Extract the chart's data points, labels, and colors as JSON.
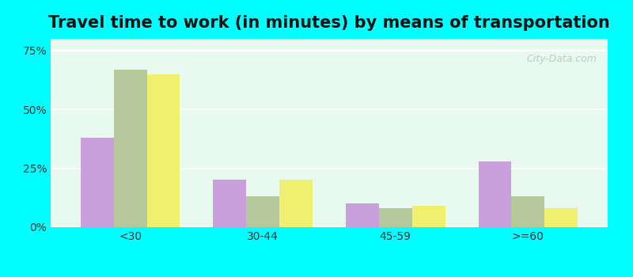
{
  "title": "Travel time to work (in minutes) by means of transportation",
  "categories": [
    "<30",
    "30-44",
    "45-59",
    ">=60"
  ],
  "series": {
    "Public transportation - Alabama": [
      38,
      20,
      10,
      28
    ],
    "Other means - Snead": [
      67,
      13,
      8,
      13
    ],
    "Other means - Alabama": [
      65,
      20,
      9,
      8
    ]
  },
  "colors": {
    "Public transportation - Alabama": "#c9a0dc",
    "Other means - Snead": "#b5c99a",
    "Other means - Alabama": "#f0f070"
  },
  "ylim": [
    0,
    80
  ],
  "yticks": [
    0,
    25,
    50,
    75
  ],
  "ytick_labels": [
    "0%",
    "25%",
    "50%",
    "75%"
  ],
  "background_color": "#e8faf0",
  "outer_background": "#00ffff",
  "title_fontsize": 15,
  "bar_width": 0.25,
  "grid_color": "#ffffff"
}
